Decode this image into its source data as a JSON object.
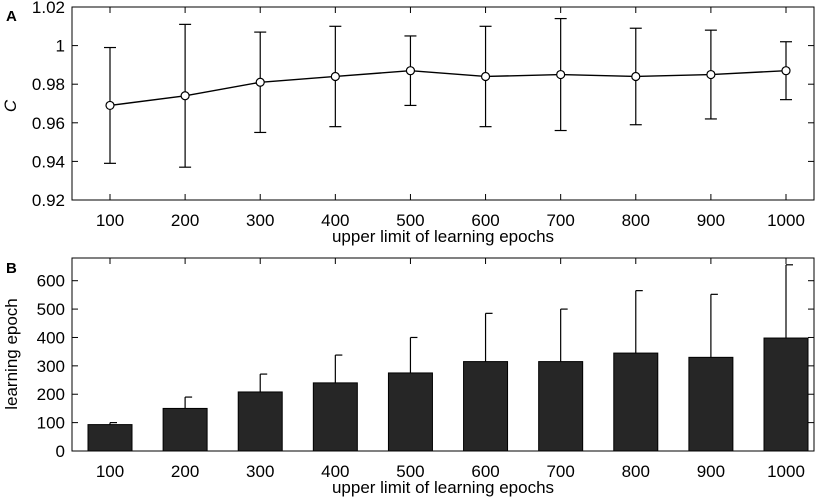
{
  "chart_data": [
    {
      "panel": "A",
      "type": "line",
      "xlabel": "upper limit of learning epochs",
      "ylabel": "C",
      "categories": [
        "100",
        "200",
        "300",
        "400",
        "500",
        "600",
        "700",
        "800",
        "900",
        "1000"
      ],
      "values": [
        0.969,
        0.974,
        0.981,
        0.984,
        0.987,
        0.984,
        0.985,
        0.984,
        0.985,
        0.987
      ],
      "errors": [
        0.03,
        0.037,
        0.026,
        0.026,
        0.018,
        0.026,
        0.029,
        0.025,
        0.023,
        0.015
      ],
      "ylim": [
        0.92,
        1.02
      ],
      "yticks": [
        0.92,
        0.94,
        0.96,
        0.98,
        1,
        1.02
      ],
      "ytick_labels": [
        "0.92",
        "0.94",
        "0.96",
        "0.98",
        "1",
        "1.02"
      ],
      "marker": "open-circle",
      "grid": false,
      "color": "#000000"
    },
    {
      "panel": "B",
      "type": "bar",
      "xlabel": "upper limit of learning epochs",
      "ylabel": "learning epoch",
      "categories": [
        "100",
        "200",
        "300",
        "400",
        "500",
        "600",
        "700",
        "800",
        "900",
        "1000"
      ],
      "values": [
        93,
        150,
        208,
        240,
        275,
        315,
        315,
        345,
        330,
        398
      ],
      "errors": [
        7,
        40,
        63,
        98,
        125,
        170,
        185,
        220,
        222,
        258
      ],
      "ylim": [
        0,
        680
      ],
      "yticks": [
        0,
        100,
        200,
        300,
        400,
        500,
        600
      ],
      "ytick_labels": [
        "0",
        "100",
        "200",
        "300",
        "400",
        "500",
        "600"
      ],
      "grid": false,
      "bar_color": "#262626"
    }
  ]
}
